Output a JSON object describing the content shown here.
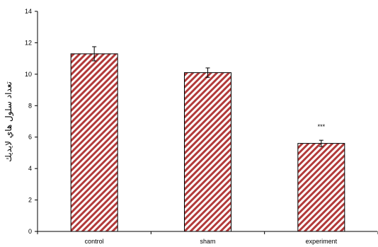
{
  "chart_data": {
    "type": "bar",
    "categories": [
      "control",
      "sham",
      "experiment"
    ],
    "values": [
      11.3,
      10.1,
      5.6
    ],
    "error": [
      0.45,
      0.3,
      0.2
    ],
    "annotations": [
      "",
      "",
      "***"
    ],
    "ylabel": "تعداد سلول هاي لايديك",
    "ylim": [
      0,
      14
    ],
    "yticks": [
      0,
      2,
      4,
      6,
      8,
      10,
      12,
      14
    ],
    "grid": false,
    "bar_fill": "diagonal-hatch",
    "colors": {
      "hatch": "#b23a3a",
      "bar_border": "#000000",
      "axis": "#000000"
    }
  }
}
